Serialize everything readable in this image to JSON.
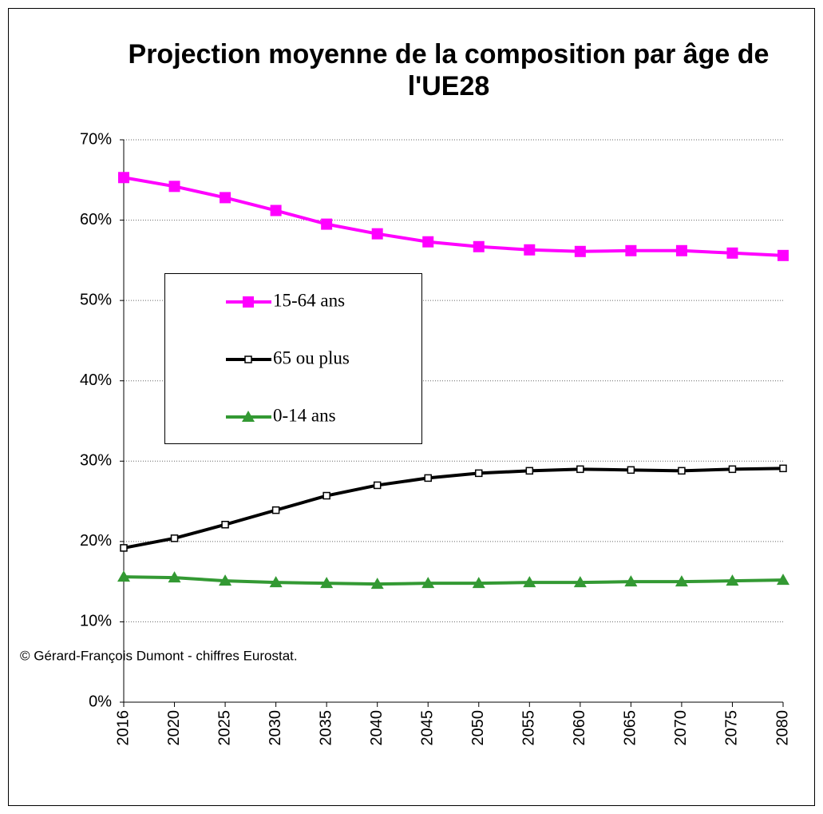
{
  "chart_data": {
    "type": "line",
    "title": "Projection moyenne de la composition par âge de l'UE28",
    "note": "© Gérard-François Dumont - chiffres Eurostat.",
    "categories": [
      "2016",
      "2020",
      "2025",
      "2030",
      "2035",
      "2040",
      "2045",
      "2050",
      "2055",
      "2060",
      "2065",
      "2070",
      "2075",
      "2080"
    ],
    "series": [
      {
        "name": "15-64 ans",
        "color": "#ff00ff",
        "marker": "square",
        "values": [
          65.3,
          64.2,
          62.8,
          61.2,
          59.5,
          58.3,
          57.3,
          56.7,
          56.3,
          56.1,
          56.2,
          56.2,
          55.9,
          55.6
        ]
      },
      {
        "name": "65 ou plus",
        "color": "#000000",
        "marker": "open-square",
        "values": [
          19.2,
          20.4,
          22.1,
          23.9,
          25.7,
          27.0,
          27.9,
          28.5,
          28.8,
          29.0,
          28.9,
          28.8,
          29.0,
          29.1
        ]
      },
      {
        "name": "0-14 ans",
        "color": "#339933",
        "marker": "triangle",
        "values": [
          15.6,
          15.5,
          15.1,
          14.9,
          14.8,
          14.7,
          14.8,
          14.8,
          14.9,
          14.9,
          15.0,
          15.0,
          15.1,
          15.2
        ]
      }
    ],
    "ylim": [
      0,
      70
    ],
    "yticks": [
      {
        "value": 0,
        "label": "0%"
      },
      {
        "value": 10,
        "label": "10%"
      },
      {
        "value": 20,
        "label": "20%"
      },
      {
        "value": 30,
        "label": "30%"
      },
      {
        "value": 40,
        "label": "40%"
      },
      {
        "value": 50,
        "label": "50%"
      },
      {
        "value": 60,
        "label": "60%"
      },
      {
        "value": 70,
        "label": "70%"
      }
    ],
    "grid": true
  }
}
